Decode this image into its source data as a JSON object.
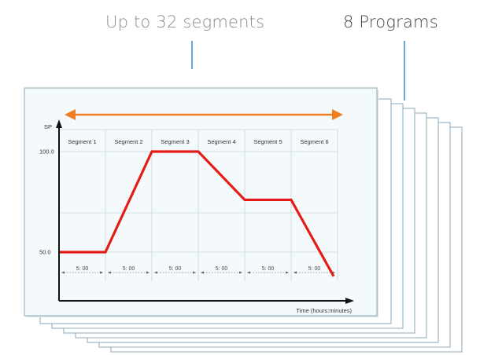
{
  "callouts": {
    "segments": "Up to 32 segments",
    "programs": "8 Programs"
  },
  "colors": {
    "profile": "#e41b17",
    "span_arrow": "#f07d20",
    "leader": "#1a78c2",
    "sheet_border": "#8aa7b8",
    "sheet_fill": "#f4fafc"
  },
  "chart_data": {
    "type": "line",
    "ylabel": "SP",
    "xlabel": "Time (hours:minutes)",
    "ytick_labels": [
      "100.0",
      "50.0"
    ],
    "ytick_values": [
      100,
      50
    ],
    "segments": [
      {
        "label": "Segment 1",
        "duration": "5: 00"
      },
      {
        "label": "Segment 2",
        "duration": "5: 00"
      },
      {
        "label": "Segment 3",
        "duration": "5: 00"
      },
      {
        "label": "Segment 4",
        "duration": "5: 00"
      },
      {
        "label": "Segment 5",
        "duration": "5: 00"
      },
      {
        "label": "Segment 6",
        "duration": "5: 00"
      }
    ],
    "profile": {
      "x": [
        0,
        1,
        2,
        3,
        4,
        5,
        6
      ],
      "y": [
        50,
        50,
        100,
        100,
        76,
        76,
        38
      ]
    },
    "ylim": [
      25,
      115
    ]
  }
}
